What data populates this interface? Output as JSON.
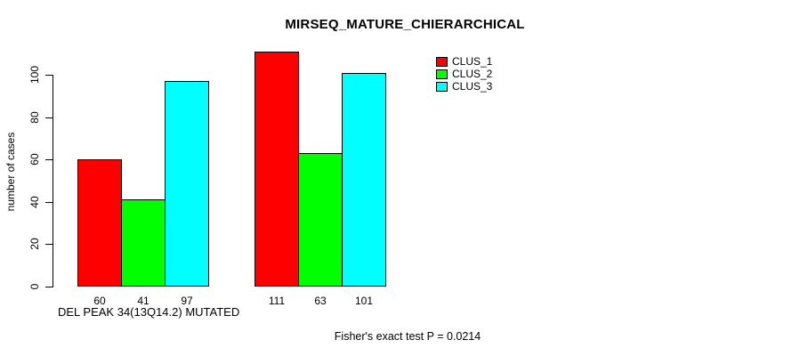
{
  "chart_data": {
    "type": "bar",
    "title": "MIRSEQ_MATURE_CHIERARCHICAL",
    "ylabel": "number of cases",
    "xlabel": "DEL PEAK 34(13Q14.2) MUTATED",
    "annotation": "Fisher's exact test P = 0.0214",
    "yticks": [
      0,
      20,
      40,
      60,
      80,
      100
    ],
    "ylim": [
      0,
      115
    ],
    "categories": [
      "DEL PEAK 34(13Q14.2) MUTATED",
      ""
    ],
    "series": [
      {
        "name": "CLUS_1",
        "color": "#ff0000",
        "values": [
          60,
          111
        ]
      },
      {
        "name": "CLUS_2",
        "color": "#00ff00",
        "values": [
          41,
          63
        ]
      },
      {
        "name": "CLUS_3",
        "color": "#00ffff",
        "values": [
          97,
          101
        ]
      }
    ],
    "bar_value_labels_shown": true,
    "bar_border_color": "#000000",
    "legend_position": "top-right",
    "grid": false,
    "background_color": "#ffffff",
    "text_color": "#000000"
  }
}
